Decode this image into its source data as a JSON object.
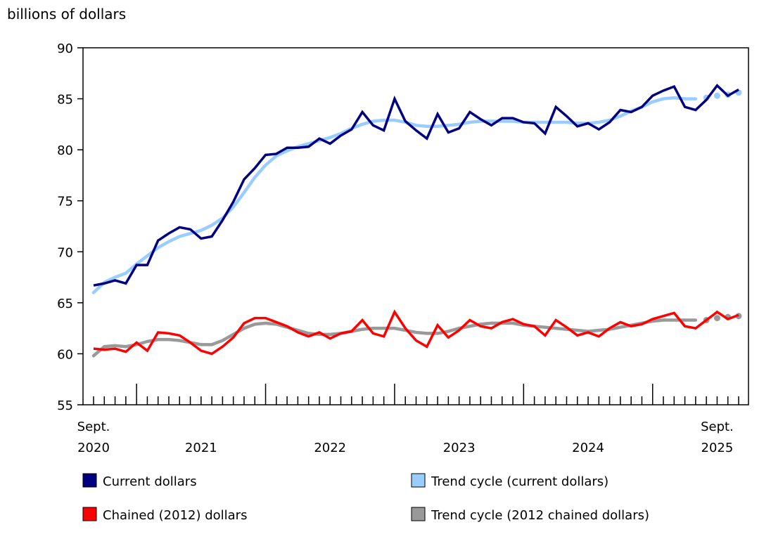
{
  "chart_data": {
    "type": "line",
    "ylabel": "billions of dollars",
    "ylim": [
      55,
      90
    ],
    "yticks": [
      55,
      60,
      65,
      70,
      75,
      80,
      85,
      90
    ],
    "x": [
      "2020-09",
      "2020-10",
      "2020-11",
      "2020-12",
      "2021-01",
      "2021-02",
      "2021-03",
      "2021-04",
      "2021-05",
      "2021-06",
      "2021-07",
      "2021-08",
      "2021-09",
      "2021-10",
      "2021-11",
      "2021-12",
      "2022-01",
      "2022-02",
      "2022-03",
      "2022-04",
      "2022-05",
      "2022-06",
      "2022-07",
      "2022-08",
      "2022-09",
      "2022-10",
      "2022-11",
      "2022-12",
      "2023-01",
      "2023-02",
      "2023-03",
      "2023-04",
      "2023-05",
      "2023-06",
      "2023-07",
      "2023-08",
      "2023-09",
      "2023-10",
      "2023-11",
      "2023-12",
      "2024-01",
      "2024-02",
      "2024-03",
      "2024-04",
      "2024-05",
      "2024-06",
      "2024-07",
      "2024-08",
      "2024-09",
      "2024-10",
      "2024-11",
      "2024-12",
      "2025-01",
      "2025-02",
      "2025-03",
      "2025-04",
      "2025-05",
      "2025-06",
      "2025-07",
      "2025-08",
      "2025-09"
    ],
    "xtick_labels": [
      {
        "top": "Sept.",
        "bottom": "2020"
      },
      {
        "top": "",
        "bottom": "2021"
      },
      {
        "top": "",
        "bottom": "2022"
      },
      {
        "top": "",
        "bottom": "2023"
      },
      {
        "top": "",
        "bottom": "2024"
      },
      {
        "top": "Sept.",
        "bottom": "2025"
      }
    ],
    "grid": false,
    "legend_placement": "bottom",
    "series": [
      {
        "name": "Current dollars",
        "color": "#000080",
        "style": "line",
        "values": [
          66.7,
          66.9,
          67.2,
          66.9,
          68.7,
          68.7,
          71.1,
          71.8,
          72.4,
          72.2,
          71.3,
          71.5,
          73.1,
          74.9,
          77.1,
          78.2,
          79.5,
          79.6,
          80.2,
          80.2,
          80.3,
          81.1,
          80.6,
          81.4,
          82.0,
          83.7,
          82.4,
          81.9,
          85.0,
          82.8,
          81.9,
          81.1,
          83.5,
          81.7,
          82.1,
          83.7,
          83.0,
          82.4,
          83.1,
          83.1,
          82.7,
          82.6,
          81.6,
          84.2,
          83.3,
          82.3,
          82.6,
          82.0,
          82.7,
          83.9,
          83.7,
          84.2,
          85.3,
          85.8,
          86.2,
          84.2,
          83.9,
          84.9,
          86.3,
          85.3,
          85.9
        ]
      },
      {
        "name": "Trend cycle (current dollars)",
        "color": "#99ccff",
        "style": "trend",
        "values": [
          66.0,
          67.0,
          67.5,
          67.9,
          68.8,
          69.6,
          70.4,
          71.0,
          71.5,
          71.8,
          72.1,
          72.6,
          73.3,
          74.4,
          75.8,
          77.3,
          78.5,
          79.4,
          79.9,
          80.3,
          80.6,
          80.9,
          81.2,
          81.6,
          82.1,
          82.5,
          82.8,
          82.9,
          82.9,
          82.7,
          82.4,
          82.3,
          82.3,
          82.4,
          82.5,
          82.7,
          82.8,
          82.8,
          82.8,
          82.8,
          82.7,
          82.7,
          82.7,
          82.7,
          82.7,
          82.6,
          82.6,
          82.7,
          82.9,
          83.3,
          83.8,
          84.2,
          84.7,
          85.0,
          85.1,
          85.0,
          85.0,
          85.1,
          85.3,
          85.4,
          85.6
        ]
      },
      {
        "name": "Chained (2012) dollars",
        "color": "#ff0000",
        "style": "line",
        "values": [
          60.5,
          60.4,
          60.5,
          60.2,
          61.1,
          60.3,
          62.1,
          62.0,
          61.8,
          61.1,
          60.3,
          60.0,
          60.7,
          61.6,
          63.0,
          63.5,
          63.5,
          63.1,
          62.7,
          62.1,
          61.7,
          62.1,
          61.5,
          62.0,
          62.2,
          63.3,
          62.0,
          61.7,
          64.1,
          62.5,
          61.3,
          60.7,
          62.8,
          61.6,
          62.3,
          63.3,
          62.7,
          62.5,
          63.1,
          63.4,
          62.9,
          62.7,
          61.8,
          63.3,
          62.6,
          61.8,
          62.1,
          61.7,
          62.5,
          63.1,
          62.7,
          62.9,
          63.4,
          63.7,
          64.0,
          62.7,
          62.5,
          63.3,
          64.1,
          63.4,
          63.8
        ]
      },
      {
        "name": "Trend cycle (2012 chained dollars)",
        "color": "#999999",
        "style": "trend",
        "values": [
          59.8,
          60.7,
          60.8,
          60.7,
          60.9,
          61.2,
          61.4,
          61.4,
          61.3,
          61.1,
          60.9,
          60.9,
          61.3,
          61.9,
          62.5,
          62.9,
          63.0,
          62.9,
          62.6,
          62.3,
          62.0,
          61.9,
          61.9,
          62.0,
          62.2,
          62.4,
          62.5,
          62.5,
          62.5,
          62.3,
          62.1,
          62.0,
          62.0,
          62.2,
          62.5,
          62.7,
          62.9,
          63.0,
          63.0,
          63.0,
          62.8,
          62.7,
          62.6,
          62.5,
          62.4,
          62.3,
          62.2,
          62.3,
          62.4,
          62.6,
          62.8,
          63.0,
          63.2,
          63.3,
          63.3,
          63.3,
          63.3,
          63.3,
          63.5,
          63.6,
          63.7
        ]
      }
    ],
    "trend_solid_through": "2025-05",
    "trend_dotted_after": "2025-05"
  }
}
